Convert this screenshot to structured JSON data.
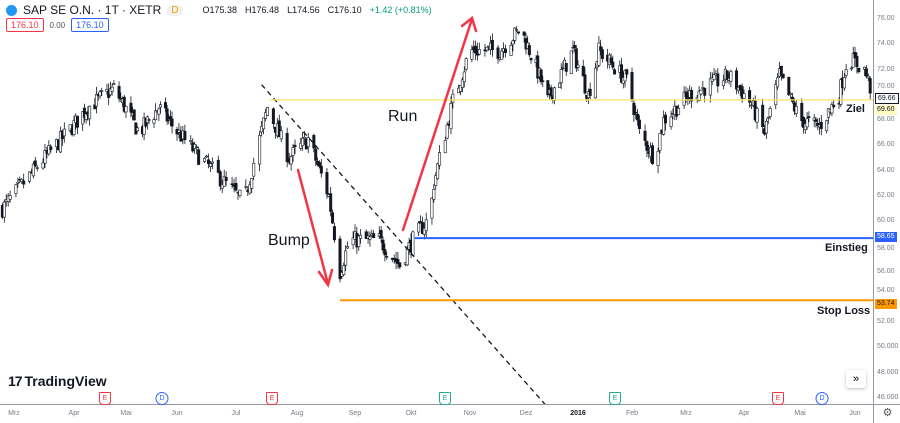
{
  "header": {
    "symbol": "SAP SE O.N. · 1T · XETR",
    "badge": "D",
    "open": "O175.38",
    "high": "H176.48",
    "low": "L174.56",
    "close": "C176.10",
    "change": "+1.42 (+0.81%)",
    "sell_price": "176.10",
    "spread": "0.00",
    "buy_price": "176.10"
  },
  "price_axis": {
    "ticks": [
      "76.00",
      "74.00",
      "72.00",
      "70.00",
      "68.00",
      "66.00",
      "64.00",
      "62.00",
      "60.00",
      "58.00",
      "56.00",
      "54.00",
      "52.00",
      "50.000",
      "48.000",
      "46.000"
    ],
    "current_price": "69.66",
    "ziel_tag": "69.60",
    "einstieg_tag": "58.65",
    "stop_tag": "53.74"
  },
  "time_axis": {
    "ticks": [
      "Mrz",
      "Apr",
      "Mai",
      "Jun",
      "Jul",
      "Aug",
      "Sep",
      "Okt",
      "Nov",
      "Dez",
      "2016",
      "Feb",
      "Mrz",
      "Apr",
      "Mai",
      "Jun"
    ]
  },
  "levels": {
    "ziel": {
      "label": "Ziel",
      "price": 69.6,
      "color": "#f5e663"
    },
    "einstieg": {
      "label": "Einstieg",
      "price": 58.65,
      "color": "#2962ff"
    },
    "stop": {
      "label": "Stop Loss",
      "price": 53.74,
      "color": "#ff9800"
    }
  },
  "annotations": {
    "bump": "Bump",
    "run": "Run",
    "arrow_color": "#f23645"
  },
  "events": [
    {
      "type": "E",
      "color": "#f23645"
    },
    {
      "type": "D",
      "color": "#2962ff"
    },
    {
      "type": "E",
      "color": "#f23645"
    },
    {
      "type": "E",
      "color": "#22ab94"
    },
    {
      "type": "E",
      "color": "#22ab94"
    },
    {
      "type": "E",
      "color": "#f23645"
    },
    {
      "type": "D",
      "color": "#2962ff"
    }
  ],
  "branding": "TradingView",
  "goto_icon": "double-chevron-right-icon",
  "settings_icon": "gear-icon",
  "chart_data": {
    "type": "candlestick",
    "ylim": [
      46,
      76
    ],
    "price_path": [
      [
        "2015-02-23",
        61
      ],
      [
        "2015-03-14",
        64.5
      ],
      [
        "2015-04-09",
        69
      ],
      [
        "2015-04-24",
        70.5
      ],
      [
        "2015-05-09",
        67
      ],
      [
        "2015-05-21",
        69
      ],
      [
        "2015-06-13",
        65
      ],
      [
        "2015-07-05",
        61.5
      ],
      [
        "2015-07-17",
        69
      ],
      [
        "2015-07-28",
        65
      ],
      [
        "2015-08-07",
        66.5
      ],
      [
        "2015-08-18",
        62
      ],
      [
        "2015-08-24",
        56
      ],
      [
        "2015-08-29",
        58.5
      ],
      [
        "2015-09-14",
        58.5
      ],
      [
        "2015-09-25",
        56.5
      ],
      [
        "2015-10-03",
        58.8
      ],
      [
        "2015-10-11",
        60.3
      ],
      [
        "2015-10-13",
        63
      ],
      [
        "2015-10-23",
        69.5
      ],
      [
        "2015-11-01",
        73.5
      ],
      [
        "2015-11-17",
        73.5
      ],
      [
        "2015-11-28",
        75.2
      ],
      [
        "2015-12-09",
        71.5
      ],
      [
        "2015-12-14",
        69.5
      ],
      [
        "2015-12-29",
        73.5
      ],
      [
        "2016-01-07",
        70
      ],
      [
        "2016-01-13",
        73.5
      ],
      [
        "2016-01-30",
        71
      ],
      [
        "2016-02-05",
        67
      ],
      [
        "2016-02-13",
        65
      ],
      [
        "2016-02-18",
        68
      ],
      [
        "2016-03-03",
        70
      ],
      [
        "2016-03-24",
        71.5
      ],
      [
        "2016-04-04",
        69.5
      ],
      [
        "2016-04-12",
        67
      ],
      [
        "2016-04-20",
        71.5
      ],
      [
        "2016-05-01",
        68
      ],
      [
        "2016-05-12",
        67.5
      ],
      [
        "2016-05-23",
        70
      ],
      [
        "2016-05-28",
        73
      ],
      [
        "2016-06-06",
        72
      ],
      [
        "2016-06-11",
        69.66
      ]
    ],
    "trendline": [
      [
        "2015-07-14",
        70.8
      ],
      [
        "2015-12-13",
        45.4
      ]
    ]
  }
}
